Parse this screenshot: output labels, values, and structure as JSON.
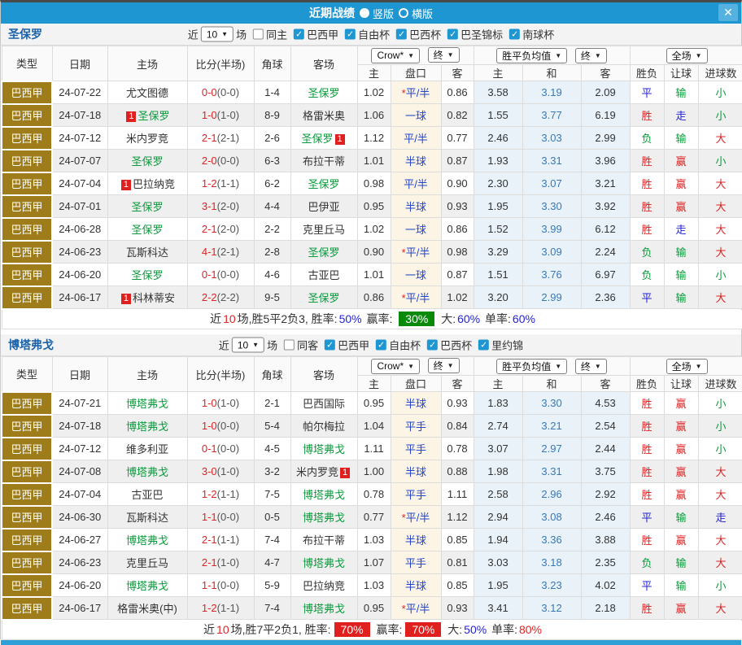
{
  "titlebar": {
    "title": "近期战绩",
    "radio_options": [
      {
        "label": "竖版",
        "selected": true
      },
      {
        "label": "横版",
        "selected": false
      }
    ],
    "close_icon": "✕"
  },
  "headers": {
    "type": "类型",
    "date": "日期",
    "home": "主场",
    "score": "比分(半场)",
    "corner": "角球",
    "away": "客场",
    "odds_home": "主",
    "handicap": "盘口",
    "odds_away": "客",
    "avg_home": "主",
    "avg_draw": "和",
    "avg_away": "客",
    "result": "胜负",
    "handicap_result": "让球",
    "goals": "进球数"
  },
  "colors": {
    "titlebar": "#1E96D2",
    "type_cell": "#9E7C1A",
    "accent_red": "#E02222",
    "accent_blue": "#2323D1",
    "accent_green": "#0A9A3C",
    "row_alt": "#EFEFEF",
    "handicap_bg": "#FCF4E4",
    "avg_bg": "#E9F2F9",
    "summary_badge_green": "#0A8A0A",
    "summary_badge_red": "#E01F1F",
    "bottom_bar": "#2F9FD8"
  },
  "sections": [
    {
      "team": "圣保罗",
      "filters": {
        "near": "近",
        "count": "10",
        "games": "场",
        "same": "同主",
        "same_checked": false,
        "leagues": [
          "巴西甲",
          "自由杯",
          "巴西杯",
          "巴圣锦标",
          "南球杯"
        ]
      },
      "dropdowns": {
        "source": "Crow*",
        "source_state": "终",
        "avg": "胜平负均值",
        "avg_state": "终",
        "scope": "全场"
      },
      "rows": [
        {
          "league": "巴西甲",
          "date": "24-07-22",
          "home": {
            "name": "尤文图德"
          },
          "score": "0-0",
          "half": "0-0",
          "corner": "1-4",
          "away": {
            "name": "圣保罗",
            "green": true
          },
          "odds": [
            "1.02",
            "*平/半",
            "0.86"
          ],
          "avg": [
            "3.58",
            "3.19",
            "2.09"
          ],
          "result": "平",
          "let": "输",
          "goal": "小"
        },
        {
          "league": "巴西甲",
          "date": "24-07-18",
          "home": {
            "name": "圣保罗",
            "green": true,
            "badge": "1",
            "badge_pos": "before"
          },
          "score": "1-0",
          "half": "1-0",
          "corner": "8-9",
          "away": {
            "name": "格雷米奥"
          },
          "odds": [
            "1.06",
            "一球",
            "0.82"
          ],
          "avg": [
            "1.55",
            "3.77",
            "6.19"
          ],
          "result": "胜",
          "let": "走",
          "goal": "小"
        },
        {
          "league": "巴西甲",
          "date": "24-07-12",
          "home": {
            "name": "米内罗竞"
          },
          "score": "2-1",
          "half": "2-1",
          "corner": "2-6",
          "away": {
            "name": "圣保罗",
            "green": true,
            "badge": "1",
            "badge_pos": "after"
          },
          "odds": [
            "1.12",
            "平/半",
            "0.77"
          ],
          "avg": [
            "2.46",
            "3.03",
            "2.99"
          ],
          "result": "负",
          "let": "输",
          "goal": "大"
        },
        {
          "league": "巴西甲",
          "date": "24-07-07",
          "home": {
            "name": "圣保罗",
            "green": true
          },
          "score": "2-0",
          "half": "0-0",
          "corner": "6-3",
          "away": {
            "name": "布拉干蒂"
          },
          "odds": [
            "1.01",
            "半球",
            "0.87"
          ],
          "avg": [
            "1.93",
            "3.31",
            "3.96"
          ],
          "result": "胜",
          "let": "赢",
          "goal": "小"
        },
        {
          "league": "巴西甲",
          "date": "24-07-04",
          "home": {
            "name": "巴拉纳竞",
            "badge": "1",
            "badge_pos": "before"
          },
          "score": "1-2",
          "half": "1-1",
          "corner": "6-2",
          "away": {
            "name": "圣保罗",
            "green": true
          },
          "odds": [
            "0.98",
            "平/半",
            "0.90"
          ],
          "avg": [
            "2.30",
            "3.07",
            "3.21"
          ],
          "result": "胜",
          "let": "赢",
          "goal": "大"
        },
        {
          "league": "巴西甲",
          "date": "24-07-01",
          "home": {
            "name": "圣保罗",
            "green": true
          },
          "score": "3-1",
          "half": "2-0",
          "corner": "4-4",
          "away": {
            "name": "巴伊亚"
          },
          "odds": [
            "0.95",
            "半球",
            "0.93"
          ],
          "avg": [
            "1.95",
            "3.30",
            "3.92"
          ],
          "result": "胜",
          "let": "赢",
          "goal": "大"
        },
        {
          "league": "巴西甲",
          "date": "24-06-28",
          "home": {
            "name": "圣保罗",
            "green": true
          },
          "score": "2-1",
          "half": "2-0",
          "corner": "2-2",
          "away": {
            "name": "克里丘马"
          },
          "odds": [
            "1.02",
            "一球",
            "0.86"
          ],
          "avg": [
            "1.52",
            "3.99",
            "6.12"
          ],
          "result": "胜",
          "let": "走",
          "goal": "大"
        },
        {
          "league": "巴西甲",
          "date": "24-06-23",
          "home": {
            "name": "瓦斯科达"
          },
          "score": "4-1",
          "half": "2-1",
          "corner": "2-8",
          "away": {
            "name": "圣保罗",
            "green": true
          },
          "odds": [
            "0.90",
            "*平/半",
            "0.98"
          ],
          "avg": [
            "3.29",
            "3.09",
            "2.24"
          ],
          "result": "负",
          "let": "输",
          "goal": "大"
        },
        {
          "league": "巴西甲",
          "date": "24-06-20",
          "home": {
            "name": "圣保罗",
            "green": true
          },
          "score": "0-1",
          "half": "0-0",
          "corner": "4-6",
          "away": {
            "name": "古亚巴"
          },
          "odds": [
            "1.01",
            "一球",
            "0.87"
          ],
          "avg": [
            "1.51",
            "3.76",
            "6.97"
          ],
          "result": "负",
          "let": "输",
          "goal": "小"
        },
        {
          "league": "巴西甲",
          "date": "24-06-17",
          "home": {
            "name": "科林蒂安",
            "badge": "1",
            "badge_pos": "before"
          },
          "score": "2-2",
          "half": "2-2",
          "corner": "9-5",
          "away": {
            "name": "圣保罗",
            "green": true
          },
          "odds": [
            "0.86",
            "*平/半",
            "1.02"
          ],
          "avg": [
            "3.20",
            "2.99",
            "2.36"
          ],
          "result": "平",
          "let": "输",
          "goal": "大"
        }
      ],
      "summary": [
        {
          "text": "近",
          "style": "dark"
        },
        {
          "text": "10",
          "style": "red"
        },
        {
          "text": "场,胜5平2负3, 胜率:",
          "style": "dark"
        },
        {
          "text": "50%",
          "style": "blue"
        },
        {
          "text": " 赢率: ",
          "style": "dark"
        },
        {
          "text": "30%",
          "style": "green-badge"
        },
        {
          "text": " 大:",
          "style": "dark"
        },
        {
          "text": "60%",
          "style": "blue"
        },
        {
          "text": " 单率:",
          "style": "dark"
        },
        {
          "text": "60%",
          "style": "blue"
        }
      ]
    },
    {
      "team": "博塔弗戈",
      "filters": {
        "near": "近",
        "count": "10",
        "games": "场",
        "same": "同客",
        "same_checked": false,
        "leagues": [
          "巴西甲",
          "自由杯",
          "巴西杯",
          "里约锦"
        ]
      },
      "dropdowns": {
        "source": "Crow*",
        "source_state": "终",
        "avg": "胜平负均值",
        "avg_state": "终",
        "scope": "全场"
      },
      "rows": [
        {
          "league": "巴西甲",
          "date": "24-07-21",
          "home": {
            "name": "博塔弗戈",
            "green": true
          },
          "score": "1-0",
          "half": "1-0",
          "corner": "2-1",
          "away": {
            "name": "巴西国际"
          },
          "odds": [
            "0.95",
            "半球",
            "0.93"
          ],
          "avg": [
            "1.83",
            "3.30",
            "4.53"
          ],
          "result": "胜",
          "let": "赢",
          "goal": "小"
        },
        {
          "league": "巴西甲",
          "date": "24-07-18",
          "home": {
            "name": "博塔弗戈",
            "green": true
          },
          "score": "1-0",
          "half": "0-0",
          "corner": "5-4",
          "away": {
            "name": "帕尔梅拉"
          },
          "odds": [
            "1.04",
            "平手",
            "0.84"
          ],
          "avg": [
            "2.74",
            "3.21",
            "2.54"
          ],
          "result": "胜",
          "let": "赢",
          "goal": "小"
        },
        {
          "league": "巴西甲",
          "date": "24-07-12",
          "home": {
            "name": "维多利亚"
          },
          "score": "0-1",
          "half": "0-0",
          "corner": "4-5",
          "away": {
            "name": "博塔弗戈",
            "green": true
          },
          "odds": [
            "1.11",
            "平手",
            "0.78"
          ],
          "avg": [
            "3.07",
            "2.97",
            "2.44"
          ],
          "result": "胜",
          "let": "赢",
          "goal": "小"
        },
        {
          "league": "巴西甲",
          "date": "24-07-08",
          "home": {
            "name": "博塔弗戈",
            "green": true
          },
          "score": "3-0",
          "half": "1-0",
          "corner": "3-2",
          "away": {
            "name": "米内罗竞",
            "badge": "1",
            "badge_pos": "after"
          },
          "odds": [
            "1.00",
            "半球",
            "0.88"
          ],
          "avg": [
            "1.98",
            "3.31",
            "3.75"
          ],
          "result": "胜",
          "let": "赢",
          "goal": "大"
        },
        {
          "league": "巴西甲",
          "date": "24-07-04",
          "home": {
            "name": "古亚巴"
          },
          "score": "1-2",
          "half": "1-1",
          "corner": "7-5",
          "away": {
            "name": "博塔弗戈",
            "green": true
          },
          "odds": [
            "0.78",
            "平手",
            "1.11"
          ],
          "avg": [
            "2.58",
            "2.96",
            "2.92"
          ],
          "result": "胜",
          "let": "赢",
          "goal": "大"
        },
        {
          "league": "巴西甲",
          "date": "24-06-30",
          "home": {
            "name": "瓦斯科达"
          },
          "score": "1-1",
          "half": "0-0",
          "corner": "0-5",
          "away": {
            "name": "博塔弗戈",
            "green": true
          },
          "odds": [
            "0.77",
            "*平/半",
            "1.12"
          ],
          "avg": [
            "2.94",
            "3.08",
            "2.46"
          ],
          "result": "平",
          "let": "输",
          "goal": "走"
        },
        {
          "league": "巴西甲",
          "date": "24-06-27",
          "home": {
            "name": "博塔弗戈",
            "green": true
          },
          "score": "2-1",
          "half": "1-1",
          "corner": "7-4",
          "away": {
            "name": "布拉干蒂"
          },
          "odds": [
            "1.03",
            "半球",
            "0.85"
          ],
          "avg": [
            "1.94",
            "3.36",
            "3.88"
          ],
          "result": "胜",
          "let": "赢",
          "goal": "大"
        },
        {
          "league": "巴西甲",
          "date": "24-06-23",
          "home": {
            "name": "克里丘马"
          },
          "score": "2-1",
          "half": "1-0",
          "corner": "4-7",
          "away": {
            "name": "博塔弗戈",
            "green": true
          },
          "odds": [
            "1.07",
            "平手",
            "0.81"
          ],
          "avg": [
            "3.03",
            "3.18",
            "2.35"
          ],
          "result": "负",
          "let": "输",
          "goal": "大"
        },
        {
          "league": "巴西甲",
          "date": "24-06-20",
          "home": {
            "name": "博塔弗戈",
            "green": true
          },
          "score": "1-1",
          "half": "0-0",
          "corner": "5-9",
          "away": {
            "name": "巴拉纳竞"
          },
          "odds": [
            "1.03",
            "半球",
            "0.85"
          ],
          "avg": [
            "1.95",
            "3.23",
            "4.02"
          ],
          "result": "平",
          "let": "输",
          "goal": "小"
        },
        {
          "league": "巴西甲",
          "date": "24-06-17",
          "home": {
            "name": "格雷米奥(中)"
          },
          "score": "1-2",
          "half": "1-1",
          "corner": "7-4",
          "away": {
            "name": "博塔弗戈",
            "green": true
          },
          "odds": [
            "0.95",
            "*平/半",
            "0.93"
          ],
          "avg": [
            "3.41",
            "3.12",
            "2.18"
          ],
          "result": "胜",
          "let": "赢",
          "goal": "大"
        }
      ],
      "summary": [
        {
          "text": "近",
          "style": "dark"
        },
        {
          "text": "10",
          "style": "red"
        },
        {
          "text": "场,胜7平2负1, 胜率:",
          "style": "dark"
        },
        {
          "text": "70%",
          "style": "red-badge"
        },
        {
          "text": " 赢率:",
          "style": "dark"
        },
        {
          "text": "70%",
          "style": "red-badge"
        },
        {
          "text": " 大:",
          "style": "dark"
        },
        {
          "text": "50%",
          "style": "blue"
        },
        {
          "text": " 单率:",
          "style": "dark"
        },
        {
          "text": "80%",
          "style": "red"
        }
      ]
    }
  ]
}
